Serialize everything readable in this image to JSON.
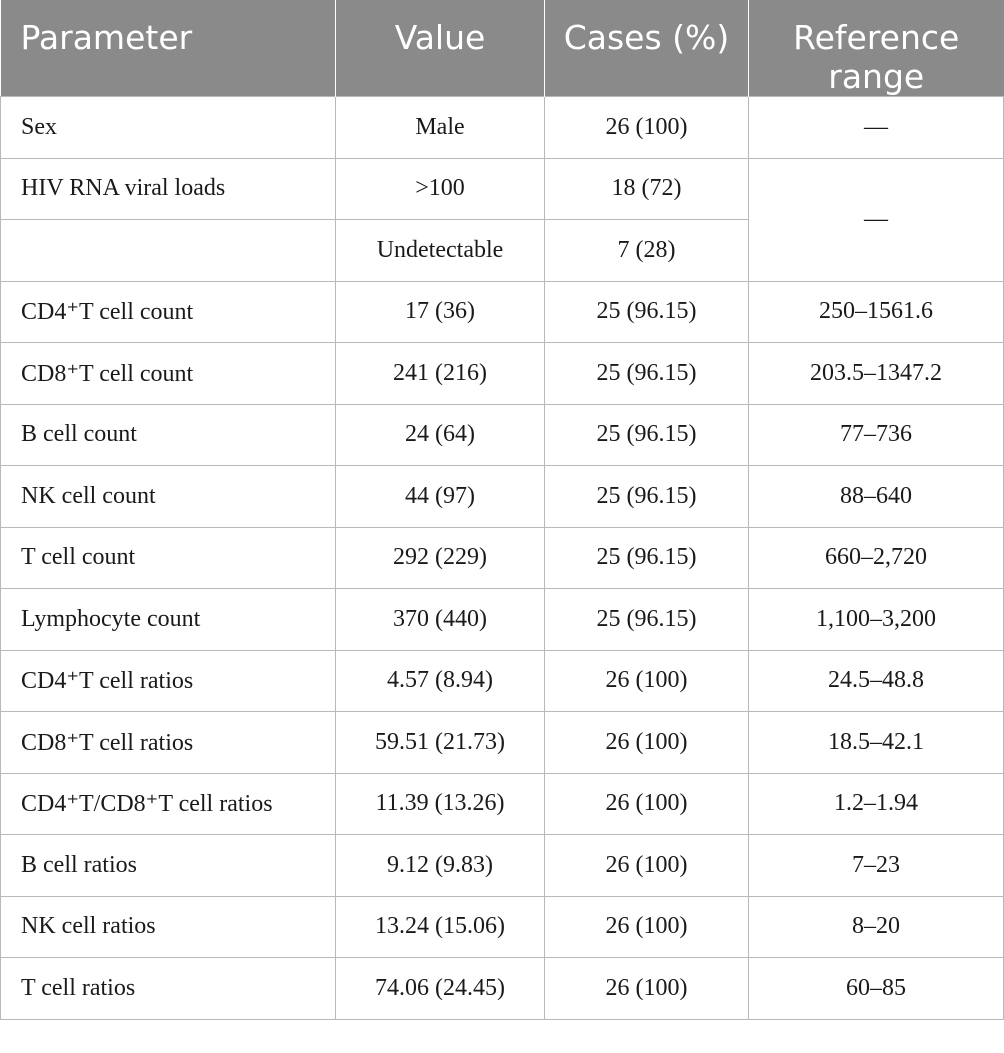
{
  "headers": {
    "parameter": "Parameter",
    "value": "Value",
    "cases": "Cases (%)",
    "reference": "Reference range"
  },
  "rows": [
    {
      "parameter": "Sex",
      "value": "Male",
      "cases": "26 (100)",
      "reference": "—"
    },
    {
      "parameter": "HIV RNA viral loads",
      "value": ">100",
      "cases": "18 (72)",
      "reference": "—"
    },
    {
      "parameter": "",
      "value": "Undetectable",
      "cases": "7 (28)",
      "reference": ""
    },
    {
      "parameter": "CD4⁺T cell count",
      "value": "17 (36)",
      "cases": "25 (96.15)",
      "reference": "250–1561.6"
    },
    {
      "parameter": "CD8⁺T cell count",
      "value": "241 (216)",
      "cases": "25 (96.15)",
      "reference": "203.5–1347.2"
    },
    {
      "parameter": "B cell count",
      "value": "24 (64)",
      "cases": "25 (96.15)",
      "reference": "77–736"
    },
    {
      "parameter": "NK cell count",
      "value": "44 (97)",
      "cases": "25 (96.15)",
      "reference": "88–640"
    },
    {
      "parameter": "T cell count",
      "value": "292 (229)",
      "cases": "25 (96.15)",
      "reference": "660–2,720"
    },
    {
      "parameter": "Lymphocyte count",
      "value": "370 (440)",
      "cases": "25 (96.15)",
      "reference": "1,100–3,200"
    },
    {
      "parameter": "CD4⁺T cell ratios",
      "value": "4.57 (8.94)",
      "cases": "26 (100)",
      "reference": "24.5–48.8"
    },
    {
      "parameter": "CD8⁺T cell ratios",
      "value": "59.51 (21.73)",
      "cases": "26 (100)",
      "reference": "18.5–42.1"
    },
    {
      "parameter": "CD4⁺T/CD8⁺T cell ratios",
      "value": "11.39 (13.26)",
      "cases": "26 (100)",
      "reference": "1.2–1.94"
    },
    {
      "parameter": "B cell ratios",
      "value": "9.12 (9.83)",
      "cases": "26 (100)",
      "reference": "7–23"
    },
    {
      "parameter": "NK cell ratios",
      "value": "13.24 (15.06)",
      "cases": "26 (100)",
      "reference": "8–20"
    },
    {
      "parameter": "T cell ratios",
      "value": "74.06 (24.45)",
      "cases": "26 (100)",
      "reference": "60–85"
    }
  ]
}
